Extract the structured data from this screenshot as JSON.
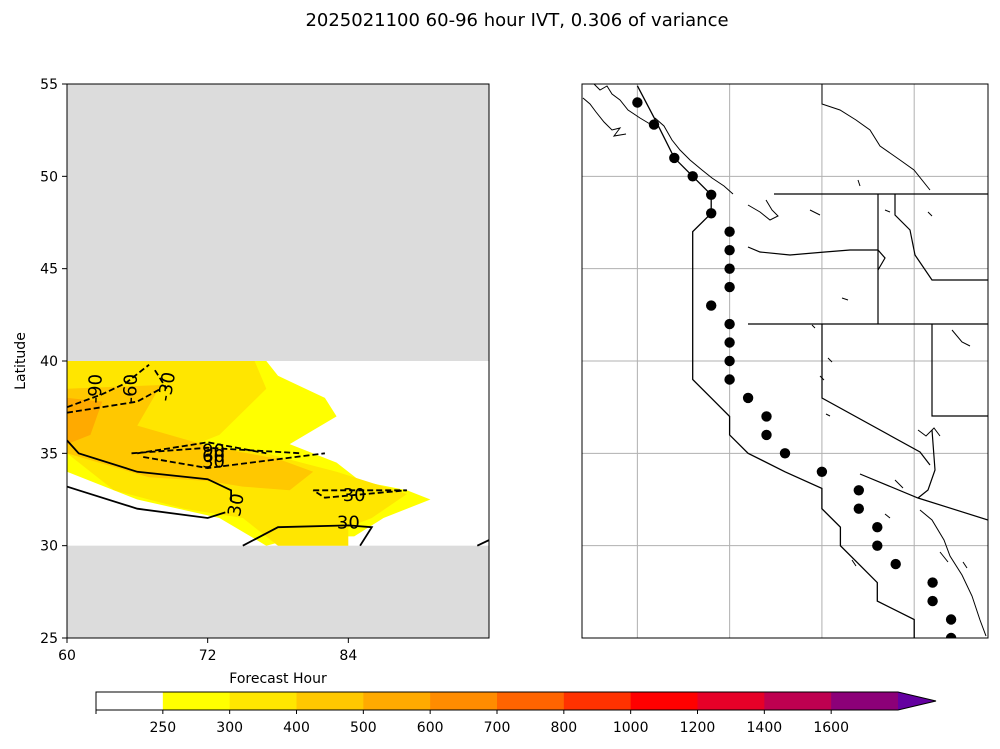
{
  "title": "2025021100 60-96 hour IVT, 0.306 of variance",
  "colors": {
    "masked_gray": "#dcdcdc",
    "ivt_250": "#ffff00",
    "ivt_300": "#ffe600",
    "ivt_400": "#ffc800",
    "ivt_500": "#ffaa00",
    "grid": "#b0b0b0"
  },
  "chart_data": [
    {
      "type": "contour",
      "panel": "left",
      "xlabel": "Forecast Hour",
      "ylabel": "Latitude",
      "xlim": [
        60,
        96
      ],
      "ylim": [
        25,
        55
      ],
      "xticks": [
        60,
        72,
        84
      ],
      "yticks": [
        25,
        30,
        35,
        40,
        45,
        50,
        55
      ],
      "masked_regions": [
        {
          "lat_min": 40,
          "lat_max": 55,
          "label": ""
        },
        {
          "lat_min": 25,
          "lat_max": 30,
          "label": ""
        }
      ],
      "filled_ivt_regions": [
        {
          "level": 250,
          "polygon": [
            [
              60,
              40
            ],
            [
              77,
              40
            ],
            [
              78,
              39.2
            ],
            [
              82,
              38
            ],
            [
              83,
              37
            ],
            [
              79,
              35.5
            ],
            [
              83,
              34.5
            ],
            [
              85,
              33.5
            ],
            [
              89,
              33
            ],
            [
              91,
              32.5
            ],
            [
              87,
              31.5
            ],
            [
              84.5,
              30.5
            ],
            [
              80,
              30.5
            ],
            [
              77,
              30
            ],
            [
              73,
              31.5
            ],
            [
              66,
              32.5
            ],
            [
              60,
              34
            ]
          ]
        },
        {
          "level": 300,
          "polygon": [
            [
              60,
              40
            ],
            [
              76,
              40
            ],
            [
              77,
              38.5
            ],
            [
              73,
              36
            ],
            [
              71,
              35.5
            ],
            [
              77,
              35
            ],
            [
              80,
              34.5
            ],
            [
              83,
              34
            ],
            [
              88,
              33
            ],
            [
              89,
              32.8
            ],
            [
              86,
              31.5
            ],
            [
              84,
              31
            ],
            [
              84,
              30
            ],
            [
              78,
              30
            ],
            [
              75,
              31.5
            ],
            [
              70,
              32
            ],
            [
              64,
              33
            ],
            [
              60,
              35
            ]
          ]
        },
        {
          "level": 400,
          "polygon": [
            [
              60,
              38.5
            ],
            [
              68,
              38.7
            ],
            [
              66,
              36.5
            ],
            [
              72,
              35.4
            ],
            [
              78,
              34.7
            ],
            [
              81,
              34
            ],
            [
              79,
              33
            ],
            [
              75,
              33.2
            ],
            [
              72,
              33.5
            ],
            [
              67,
              33.7
            ],
            [
              60,
              35
            ]
          ]
        },
        {
          "level": 500,
          "polygon": [
            [
              60,
              38
            ],
            [
              63,
              37.8
            ],
            [
              62,
              36
            ],
            [
              60,
              35.5
            ]
          ]
        }
      ],
      "contour_lines": [
        {
          "style": "dashed",
          "value": -90,
          "label": "-90",
          "path": [
            [
              60,
              37.5
            ],
            [
              63,
              38.2
            ],
            [
              65,
              38.8
            ],
            [
              67,
              39.8
            ]
          ]
        },
        {
          "style": "dashed",
          "value": -60,
          "label": "-60",
          "path": [
            [
              60,
              37.2
            ],
            [
              66,
              37.8
            ],
            [
              68,
              38.5
            ]
          ]
        },
        {
          "style": "dashed",
          "value": -30,
          "label": "-30",
          "path": [
            [
              67.5,
              39.5
            ],
            [
              68.5,
              38.5
            ]
          ]
        },
        {
          "style": "dashed",
          "value": 90,
          "label": "90",
          "path": [
            [
              66,
              35
            ],
            [
              72,
              35.6
            ],
            [
              77,
              35
            ]
          ]
        },
        {
          "style": "dashed",
          "value": 60,
          "label": "60",
          "path": [
            [
              65.5,
              35
            ],
            [
              72,
              35.3
            ],
            [
              80,
              35
            ]
          ]
        },
        {
          "style": "dashed",
          "value": 30,
          "label": "30",
          "path": [
            [
              66.5,
              34.8
            ],
            [
              72,
              34.2
            ],
            [
              82,
              35
            ]
          ]
        },
        {
          "style": "dashed",
          "value": 30,
          "label": "30",
          "path": [
            [
              81,
              33
            ],
            [
              89,
              33
            ],
            [
              82,
              32.6
            ],
            [
              81,
              33
            ]
          ]
        },
        {
          "style": "solid",
          "value": 30,
          "label": "30",
          "path": [
            [
              60,
              35.7
            ],
            [
              61,
              35
            ],
            [
              66,
              34
            ],
            [
              72,
              33.6
            ],
            [
              74,
              33
            ],
            [
              74,
              32.4
            ]
          ]
        },
        {
          "style": "solid",
          "value": 30,
          "label": "30",
          "path": [
            [
              60,
              33.2
            ],
            [
              61,
              33
            ],
            [
              66,
              32
            ],
            [
              72,
              31.5
            ],
            [
              73.5,
              31.8
            ]
          ]
        },
        {
          "style": "solid",
          "value": 30,
          "label": "30",
          "path": [
            [
              75,
              30
            ],
            [
              78,
              31
            ],
            [
              84,
              31.1
            ],
            [
              86,
              31
            ],
            [
              85,
              30
            ]
          ]
        },
        {
          "style": "solid",
          "value": 30,
          "label": "",
          "path": [
            [
              95,
              30
            ],
            [
              96,
              30.3
            ]
          ]
        }
      ],
      "contour_labels": [
        {
          "text": "-90",
          "x": 62.5,
          "y": 38.5,
          "rotation": -88
        },
        {
          "text": "-60",
          "x": 65.5,
          "y": 38.5,
          "rotation": -88
        },
        {
          "text": "-30",
          "x": 68.6,
          "y": 38.6,
          "rotation": -80
        },
        {
          "text": "90",
          "x": 72.5,
          "y": 35.1,
          "rotation": 0
        },
        {
          "text": "60",
          "x": 72.5,
          "y": 34.8,
          "rotation": 0
        },
        {
          "text": "30",
          "x": 72.5,
          "y": 34.5,
          "rotation": 0
        },
        {
          "text": "30",
          "x": 84.5,
          "y": 32.7,
          "rotation": 0
        },
        {
          "text": "30",
          "x": 84,
          "y": 31.2,
          "rotation": 0
        },
        {
          "text": "30",
          "x": 74.5,
          "y": 32.2,
          "rotation": -80
        }
      ]
    },
    {
      "type": "map",
      "panel": "right",
      "extent": {
        "lon_min": -130,
        "lon_max": -108,
        "lat_min": 25,
        "lat_max": 55
      },
      "gridlines_lon": [
        -127,
        -122,
        -117,
        -112
      ],
      "gridlines_lat": [
        30,
        35,
        40,
        45,
        50
      ],
      "grid": true,
      "coastline_points": [
        [
          -127,
          54.9
        ],
        [
          -126,
          53
        ],
        [
          -125,
          51
        ],
        [
          -124,
          50
        ],
        [
          -123,
          49
        ],
        [
          -123,
          48
        ],
        [
          -124,
          47
        ],
        [
          -124,
          46
        ],
        [
          -124,
          45
        ],
        [
          -124,
          44
        ],
        [
          -124,
          42
        ],
        [
          -124,
          41
        ],
        [
          -124,
          40
        ],
        [
          -124,
          39
        ],
        [
          -123,
          38
        ],
        [
          -122,
          37
        ],
        [
          -122,
          36
        ],
        [
          -121,
          35
        ],
        [
          -119,
          34
        ],
        [
          -117,
          33.1
        ],
        [
          -117,
          32
        ],
        [
          -116,
          31
        ],
        [
          -116,
          30
        ],
        [
          -115,
          29
        ],
        [
          -114,
          28
        ],
        [
          -114,
          27
        ],
        [
          -112,
          26
        ],
        [
          -112,
          25
        ]
      ],
      "points": [
        [
          -127,
          54
        ],
        [
          -126.1,
          52.8
        ],
        [
          -125,
          51
        ],
        [
          -124,
          50
        ],
        [
          -123,
          49
        ],
        [
          -123,
          48
        ],
        [
          -122,
          47
        ],
        [
          -122,
          46
        ],
        [
          -122,
          45
        ],
        [
          -122,
          44
        ],
        [
          -123,
          43
        ],
        [
          -122,
          42
        ],
        [
          -122,
          41
        ],
        [
          -122,
          40
        ],
        [
          -122,
          39
        ],
        [
          -121,
          38
        ],
        [
          -120,
          37
        ],
        [
          -120,
          36
        ],
        [
          -119,
          35
        ],
        [
          -117,
          34
        ],
        [
          -115,
          33
        ],
        [
          -115,
          32
        ],
        [
          -114,
          31
        ],
        [
          -114,
          30
        ],
        [
          -113,
          29
        ],
        [
          -111,
          28
        ],
        [
          -111,
          27
        ],
        [
          -110,
          26
        ],
        [
          -110,
          25
        ]
      ]
    },
    {
      "type": "colorbar",
      "levels": [
        0,
        250,
        300,
        400,
        500,
        600,
        700,
        800,
        1000,
        1200,
        1400,
        1600
      ],
      "tick_labels": [
        "250",
        "300",
        "400",
        "500",
        "600",
        "700",
        "800",
        "1000",
        "1200",
        "1400",
        "1600"
      ],
      "colors": [
        "#ffffff",
        "#ffff00",
        "#ffe600",
        "#ffc800",
        "#ffaa00",
        "#ff8c00",
        "#ff6400",
        "#ff3200",
        "#ff0000",
        "#e60028",
        "#be0050",
        "#8c0078",
        "#6400a0"
      ],
      "extend": "max"
    }
  ]
}
